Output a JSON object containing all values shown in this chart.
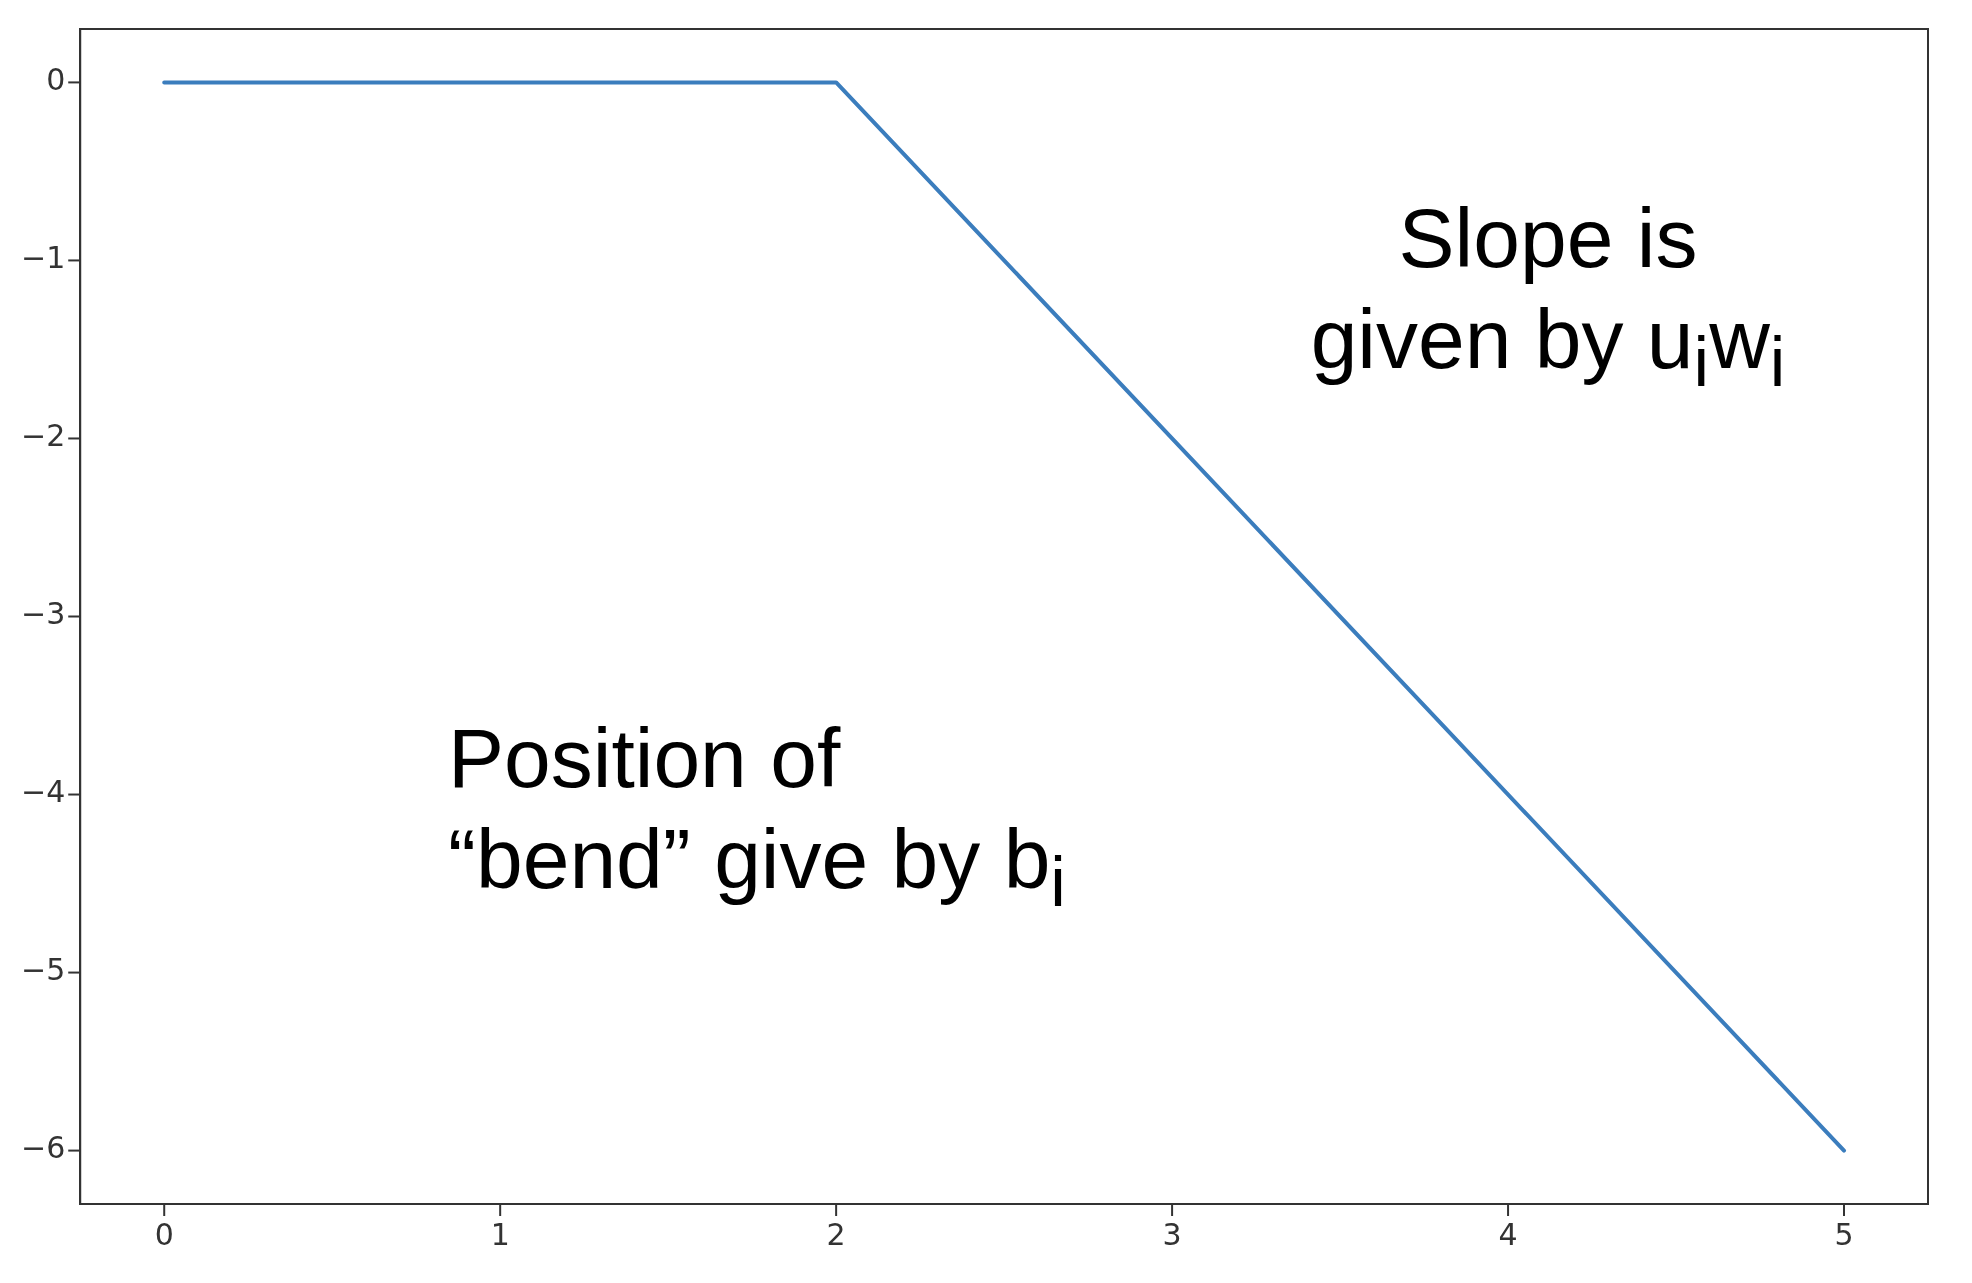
{
  "chart_data": {
    "type": "line",
    "x": [
      0,
      2,
      5
    ],
    "series": [
      {
        "color": "#3b7dbd",
        "values": [
          0,
          0,
          -6
        ]
      }
    ],
    "xlim": [
      -0.25,
      5.25
    ],
    "xticks": [
      0,
      1,
      2,
      3,
      4,
      5
    ],
    "ylim": [
      -6.3,
      0.3
    ],
    "yticks": [
      0,
      {
        "value": -1,
        "label": "−1"
      },
      {
        "value": -2,
        "label": "−2"
      },
      {
        "value": -3,
        "label": "−3"
      },
      {
        "value": -4,
        "label": "−4"
      },
      {
        "value": -5,
        "label": "−5"
      },
      {
        "value": -6,
        "label": "−6"
      }
    ],
    "grid": false,
    "legend": false,
    "marker": "none",
    "line_style": "solid",
    "annotations": [
      "Slope is\ngiven by u$_{i}$w$_{i}$",
      "Position of\n“bend” give by b$_{i}$"
    ]
  }
}
